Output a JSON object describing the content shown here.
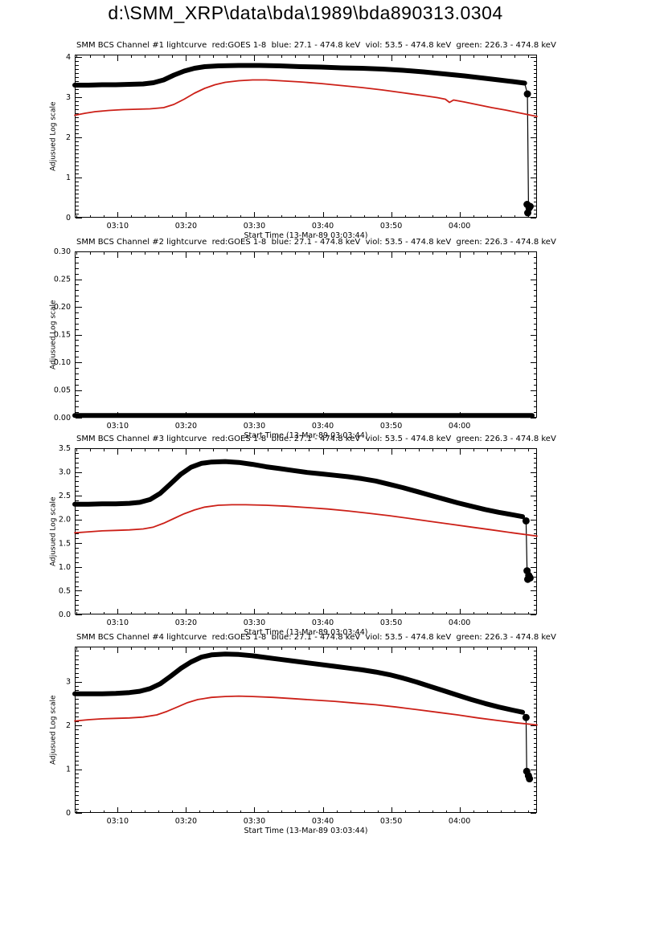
{
  "page_title": "d:\\SMM_XRP\\data\\bda\\1989\\bda890313.0304",
  "colors": {
    "black_series": "#000000",
    "red_series": "#cc2018",
    "frame": "#000000",
    "background": "#ffffff"
  },
  "x_axis": {
    "label": "Start Time (13-Mar-89 03:03:44)",
    "tick_labels": [
      "03:10",
      "03:20",
      "03:30",
      "03:40",
      "03:50",
      "04:00"
    ],
    "tick_positions_min": [
      6.27,
      16.27,
      26.27,
      36.27,
      46.27,
      56.27
    ],
    "minor_step_min": 2,
    "range_min": [
      0,
      67.6
    ]
  },
  "chart_data": [
    {
      "type": "line",
      "title": "SMM BCS Channel #1 lightcurve  red:GOES 1-8  blue: 27.1 - 474.8 keV  viol: 53.5 - 474.8 keV  green: 226.3 - 474.8 keV",
      "ylabel": "Adjusued Log scale",
      "xlabel": "Start Time (13-Mar-89 03:03:44)",
      "ylim": [
        0,
        4.06
      ],
      "ytick_values": [
        0,
        1,
        2,
        3,
        4
      ],
      "ytick_labels": [
        "0",
        "1",
        "2",
        "3",
        "4"
      ],
      "y_minor_step": 0.1,
      "grid": false,
      "legend": "none",
      "series": [
        {
          "name": "BCS Channel #1 counts (black)",
          "color": "#000000",
          "width": 6,
          "points": [
            [
              0,
              3.3
            ],
            [
              2,
              3.3
            ],
            [
              4,
              3.31
            ],
            [
              6,
              3.31
            ],
            [
              8,
              3.32
            ],
            [
              10,
              3.33
            ],
            [
              11.5,
              3.36
            ],
            [
              13,
              3.43
            ],
            [
              14.5,
              3.55
            ],
            [
              16,
              3.65
            ],
            [
              17.5,
              3.72
            ],
            [
              19,
              3.76
            ],
            [
              21,
              3.78
            ],
            [
              24,
              3.79
            ],
            [
              27,
              3.79
            ],
            [
              30,
              3.78
            ],
            [
              33,
              3.76
            ],
            [
              36,
              3.75
            ],
            [
              39,
              3.73
            ],
            [
              42,
              3.72
            ],
            [
              45,
              3.7
            ],
            [
              48,
              3.67
            ],
            [
              51,
              3.63
            ],
            [
              54,
              3.58
            ],
            [
              57,
              3.53
            ],
            [
              60,
              3.47
            ],
            [
              62,
              3.43
            ],
            [
              64,
              3.39
            ],
            [
              65.8,
              3.35
            ]
          ]
        },
        {
          "name": "data-gap drop line (black thin)",
          "color": "#000000",
          "width": 1.2,
          "points": [
            [
              65.8,
              3.35
            ],
            [
              66.2,
              3.08
            ],
            [
              66.35,
              0.35
            ]
          ]
        },
        {
          "name": "GOES 1-8 (red)",
          "color": "#cc2018",
          "width": 1.8,
          "points": [
            [
              0,
              2.55
            ],
            [
              1.5,
              2.6
            ],
            [
              3,
              2.64
            ],
            [
              5,
              2.67
            ],
            [
              7,
              2.69
            ],
            [
              9,
              2.7
            ],
            [
              11,
              2.71
            ],
            [
              13,
              2.74
            ],
            [
              14.5,
              2.82
            ],
            [
              16,
              2.95
            ],
            [
              17.5,
              3.1
            ],
            [
              19,
              3.22
            ],
            [
              20.5,
              3.31
            ],
            [
              22,
              3.37
            ],
            [
              24,
              3.41
            ],
            [
              26,
              3.43
            ],
            [
              28,
              3.43
            ],
            [
              30,
              3.41
            ],
            [
              33,
              3.38
            ],
            [
              36,
              3.34
            ],
            [
              39,
              3.29
            ],
            [
              42,
              3.24
            ],
            [
              45,
              3.18
            ],
            [
              48,
              3.11
            ],
            [
              51,
              3.04
            ],
            [
              53,
              2.99
            ],
            [
              54.2,
              2.95
            ],
            [
              54.8,
              2.87
            ],
            [
              55.4,
              2.93
            ],
            [
              57,
              2.88
            ],
            [
              59,
              2.81
            ],
            [
              61,
              2.74
            ],
            [
              63,
              2.68
            ],
            [
              65,
              2.61
            ],
            [
              67.6,
              2.52
            ]
          ]
        }
      ],
      "end_markers": [
        {
          "x": 66.2,
          "y": 3.08,
          "r": 4.5
        },
        {
          "x": 66.15,
          "y": 0.33,
          "r": 4.5
        },
        {
          "x": 66.45,
          "y": 0.24,
          "r": 4.5
        },
        {
          "x": 66.6,
          "y": 0.28,
          "r": 4.5
        },
        {
          "x": 66.25,
          "y": 0.12,
          "r": 4.5
        }
      ]
    },
    {
      "type": "line",
      "title": "SMM BCS Channel #2 lightcurve  red:GOES 1-8  blue: 27.1 - 474.8 keV  viol: 53.5 - 474.8 keV  green: 226.3 - 474.8 keV",
      "ylabel": "Adjusued Log scale",
      "xlabel": "Start Time (13-Mar-89 03:03:44)",
      "ylim": [
        0,
        0.3
      ],
      "ytick_values": [
        0,
        0.05,
        0.1,
        0.15,
        0.2,
        0.25,
        0.3
      ],
      "ytick_labels": [
        "0.00",
        "0.05",
        "0.10",
        "0.15",
        "0.20",
        "0.25",
        "0.30"
      ],
      "y_minor_step": 0.01,
      "grid": false,
      "legend": "none",
      "series": [
        {
          "name": "BCS Channel #2 counts (black, no signal)",
          "color": "#000000",
          "width": 6,
          "points": [
            [
              0,
              0.004
            ],
            [
              66.9,
              0.004
            ]
          ]
        }
      ],
      "end_markers": []
    },
    {
      "type": "line",
      "title": "SMM BCS Channel #3 lightcurve  red:GOES 1-8  blue: 27.1 - 474.8 keV  viol: 53.5 - 474.8 keV  green: 226.3 - 474.8 keV",
      "ylabel": "Adjusued Log scale",
      "xlabel": "Start Time (13-Mar-89 03:03:44)",
      "ylim": [
        0,
        3.5
      ],
      "ytick_values": [
        0,
        0.5,
        1.0,
        1.5,
        2.0,
        2.5,
        3.0,
        3.5
      ],
      "ytick_labels": [
        "0.0",
        "0.5",
        "1.0",
        "1.5",
        "2.0",
        "2.5",
        "3.0",
        "3.5"
      ],
      "y_minor_step": 0.1,
      "grid": false,
      "legend": "none",
      "series": [
        {
          "name": "BCS Channel #3 counts (black)",
          "color": "#000000",
          "width": 6,
          "points": [
            [
              0,
              2.32
            ],
            [
              2,
              2.32
            ],
            [
              4,
              2.33
            ],
            [
              6,
              2.33
            ],
            [
              8,
              2.34
            ],
            [
              9.5,
              2.36
            ],
            [
              11,
              2.42
            ],
            [
              12.5,
              2.55
            ],
            [
              14,
              2.75
            ],
            [
              15.5,
              2.95
            ],
            [
              17,
              3.1
            ],
            [
              18.5,
              3.18
            ],
            [
              20,
              3.21
            ],
            [
              22,
              3.22
            ],
            [
              24,
              3.2
            ],
            [
              26,
              3.16
            ],
            [
              28,
              3.11
            ],
            [
              30,
              3.07
            ],
            [
              32,
              3.03
            ],
            [
              34,
              2.99
            ],
            [
              36,
              2.96
            ],
            [
              38,
              2.93
            ],
            [
              40,
              2.9
            ],
            [
              42,
              2.86
            ],
            [
              44,
              2.81
            ],
            [
              46,
              2.74
            ],
            [
              48,
              2.67
            ],
            [
              50,
              2.59
            ],
            [
              52,
              2.51
            ],
            [
              54,
              2.43
            ],
            [
              56,
              2.35
            ],
            [
              58,
              2.28
            ],
            [
              60,
              2.21
            ],
            [
              62,
              2.15
            ],
            [
              64,
              2.1
            ],
            [
              65.5,
              2.06
            ]
          ]
        },
        {
          "name": "data-gap drop line (black thin)",
          "color": "#000000",
          "width": 1.2,
          "points": [
            [
              65.5,
              2.06
            ],
            [
              66,
              1.97
            ],
            [
              66.15,
              0.9
            ]
          ]
        },
        {
          "name": "GOES 1-8 (red)",
          "color": "#cc2018",
          "width": 1.8,
          "points": [
            [
              0,
              1.72
            ],
            [
              2,
              1.74
            ],
            [
              4,
              1.76
            ],
            [
              6,
              1.77
            ],
            [
              8,
              1.78
            ],
            [
              10,
              1.8
            ],
            [
              11.5,
              1.84
            ],
            [
              13,
              1.92
            ],
            [
              14.5,
              2.02
            ],
            [
              16,
              2.12
            ],
            [
              17.5,
              2.2
            ],
            [
              19,
              2.26
            ],
            [
              21,
              2.3
            ],
            [
              23,
              2.31
            ],
            [
              25,
              2.31
            ],
            [
              28,
              2.3
            ],
            [
              31,
              2.28
            ],
            [
              34,
              2.25
            ],
            [
              37,
              2.22
            ],
            [
              40,
              2.18
            ],
            [
              43,
              2.13
            ],
            [
              46,
              2.08
            ],
            [
              49,
              2.02
            ],
            [
              52,
              1.96
            ],
            [
              55,
              1.9
            ],
            [
              58,
              1.84
            ],
            [
              61,
              1.78
            ],
            [
              64,
              1.72
            ],
            [
              67.6,
              1.65
            ]
          ]
        }
      ],
      "end_markers": [
        {
          "x": 66.0,
          "y": 1.97,
          "r": 4.5
        },
        {
          "x": 66.15,
          "y": 0.92,
          "r": 4.5
        },
        {
          "x": 66.4,
          "y": 0.82,
          "r": 4.5
        },
        {
          "x": 66.6,
          "y": 0.77,
          "r": 4.5
        },
        {
          "x": 66.25,
          "y": 0.74,
          "r": 4.5
        }
      ]
    },
    {
      "type": "line",
      "title": "SMM BCS Channel #4 lightcurve  red:GOES 1-8  blue: 27.1 - 474.8 keV  viol: 53.5 - 474.8 keV  green: 226.3 - 474.8 keV",
      "ylabel": "Adjusued Log scale",
      "xlabel": "Start Time (13-Mar-89 03:03:44)",
      "ylim": [
        0,
        3.8
      ],
      "ytick_values": [
        0,
        1,
        2,
        3
      ],
      "ytick_labels": [
        "0",
        "1",
        "2",
        "3"
      ],
      "y_minor_step": 0.1,
      "grid": false,
      "legend": "none",
      "series": [
        {
          "name": "BCS Channel #4 counts (black)",
          "color": "#000000",
          "width": 6,
          "points": [
            [
              0,
              2.72
            ],
            [
              2,
              2.72
            ],
            [
              4,
              2.72
            ],
            [
              6,
              2.73
            ],
            [
              8,
              2.75
            ],
            [
              9.5,
              2.78
            ],
            [
              11,
              2.84
            ],
            [
              12.5,
              2.95
            ],
            [
              14,
              3.12
            ],
            [
              15.5,
              3.3
            ],
            [
              17,
              3.45
            ],
            [
              18.5,
              3.56
            ],
            [
              20,
              3.61
            ],
            [
              22,
              3.63
            ],
            [
              24,
              3.62
            ],
            [
              26,
              3.59
            ],
            [
              28,
              3.55
            ],
            [
              30,
              3.51
            ],
            [
              32,
              3.47
            ],
            [
              34,
              3.43
            ],
            [
              36,
              3.39
            ],
            [
              38,
              3.35
            ],
            [
              40,
              3.31
            ],
            [
              42,
              3.27
            ],
            [
              44,
              3.22
            ],
            [
              46,
              3.16
            ],
            [
              48,
              3.08
            ],
            [
              50,
              2.99
            ],
            [
              52,
              2.89
            ],
            [
              54,
              2.79
            ],
            [
              56,
              2.69
            ],
            [
              58,
              2.59
            ],
            [
              60,
              2.5
            ],
            [
              62,
              2.42
            ],
            [
              64,
              2.35
            ],
            [
              65.5,
              2.3
            ]
          ]
        },
        {
          "name": "data-gap drop line (black thin)",
          "color": "#000000",
          "width": 1.2,
          "points": [
            [
              65.5,
              2.3
            ],
            [
              66,
              2.18
            ],
            [
              66.1,
              1.0
            ]
          ]
        },
        {
          "name": "GOES 1-8 (red)",
          "color": "#cc2018",
          "width": 1.8,
          "points": [
            [
              0,
              2.1
            ],
            [
              2,
              2.13
            ],
            [
              4,
              2.15
            ],
            [
              6,
              2.16
            ],
            [
              8,
              2.17
            ],
            [
              10,
              2.19
            ],
            [
              12,
              2.24
            ],
            [
              13.5,
              2.32
            ],
            [
              15,
              2.42
            ],
            [
              16.5,
              2.52
            ],
            [
              18,
              2.59
            ],
            [
              20,
              2.64
            ],
            [
              22,
              2.66
            ],
            [
              24,
              2.67
            ],
            [
              26,
              2.66
            ],
            [
              29,
              2.64
            ],
            [
              32,
              2.61
            ],
            [
              35,
              2.58
            ],
            [
              38,
              2.55
            ],
            [
              41,
              2.51
            ],
            [
              44,
              2.47
            ],
            [
              47,
              2.42
            ],
            [
              50,
              2.36
            ],
            [
              53,
              2.3
            ],
            [
              56,
              2.24
            ],
            [
              59,
              2.17
            ],
            [
              62,
              2.11
            ],
            [
              64.5,
              2.06
            ],
            [
              67.6,
              2.01
            ]
          ]
        }
      ],
      "end_markers": [
        {
          "x": 66.0,
          "y": 2.18,
          "r": 4.5
        },
        {
          "x": 66.1,
          "y": 0.95,
          "r": 4.5
        },
        {
          "x": 66.35,
          "y": 0.85,
          "r": 4.5
        },
        {
          "x": 66.5,
          "y": 0.78,
          "r": 4.5
        }
      ]
    }
  ]
}
